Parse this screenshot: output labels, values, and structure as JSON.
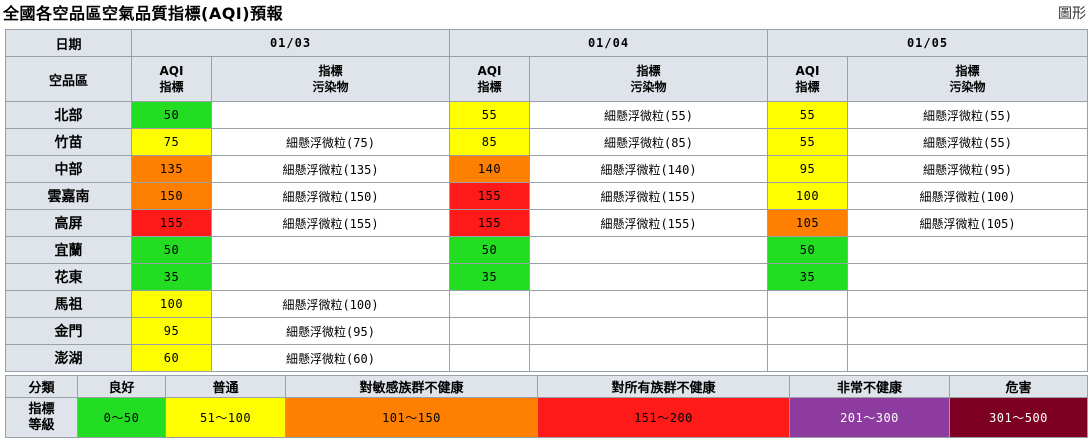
{
  "page": {
    "title": "全國各空品區空氣品質指標(AQI)預報",
    "graph_link": "圖形"
  },
  "table": {
    "header_date": "日期",
    "header_region": "空品區",
    "aqi_header_line1": "AQI",
    "aqi_header_line2": "指標",
    "pollutant_header_line1": "指標",
    "pollutant_header_line2": "污染物",
    "dates": [
      "01/03",
      "01/04",
      "01/05"
    ],
    "rows": [
      {
        "region": "北部",
        "d1": {
          "aqi": "50",
          "color": "#22dd22",
          "pollutant": ""
        },
        "d2": {
          "aqi": "55",
          "color": "#ffff00",
          "pollutant": "細懸浮微粒(55)"
        },
        "d3": {
          "aqi": "55",
          "color": "#ffff00",
          "pollutant": "細懸浮微粒(55)"
        }
      },
      {
        "region": "竹苗",
        "d1": {
          "aqi": "75",
          "color": "#ffff00",
          "pollutant": "細懸浮微粒(75)"
        },
        "d2": {
          "aqi": "85",
          "color": "#ffff00",
          "pollutant": "細懸浮微粒(85)"
        },
        "d3": {
          "aqi": "55",
          "color": "#ffff00",
          "pollutant": "細懸浮微粒(55)"
        }
      },
      {
        "region": "中部",
        "d1": {
          "aqi": "135",
          "color": "#ff8000",
          "pollutant": "細懸浮微粒(135)"
        },
        "d2": {
          "aqi": "140",
          "color": "#ff8000",
          "pollutant": "細懸浮微粒(140)"
        },
        "d3": {
          "aqi": "95",
          "color": "#ffff00",
          "pollutant": "細懸浮微粒(95)"
        }
      },
      {
        "region": "雲嘉南",
        "d1": {
          "aqi": "150",
          "color": "#ff8000",
          "pollutant": "細懸浮微粒(150)"
        },
        "d2": {
          "aqi": "155",
          "color": "#ff1a1a",
          "pollutant": "細懸浮微粒(155)"
        },
        "d3": {
          "aqi": "100",
          "color": "#ffff00",
          "pollutant": "細懸浮微粒(100)"
        }
      },
      {
        "region": "高屏",
        "d1": {
          "aqi": "155",
          "color": "#ff1a1a",
          "pollutant": "細懸浮微粒(155)"
        },
        "d2": {
          "aqi": "155",
          "color": "#ff1a1a",
          "pollutant": "細懸浮微粒(155)"
        },
        "d3": {
          "aqi": "105",
          "color": "#ff8000",
          "pollutant": "細懸浮微粒(105)"
        }
      },
      {
        "region": "宜蘭",
        "d1": {
          "aqi": "50",
          "color": "#22dd22",
          "pollutant": ""
        },
        "d2": {
          "aqi": "50",
          "color": "#22dd22",
          "pollutant": ""
        },
        "d3": {
          "aqi": "50",
          "color": "#22dd22",
          "pollutant": ""
        }
      },
      {
        "region": "花東",
        "d1": {
          "aqi": "35",
          "color": "#22dd22",
          "pollutant": ""
        },
        "d2": {
          "aqi": "35",
          "color": "#22dd22",
          "pollutant": ""
        },
        "d3": {
          "aqi": "35",
          "color": "#22dd22",
          "pollutant": ""
        }
      },
      {
        "region": "馬祖",
        "d1": {
          "aqi": "100",
          "color": "#ffff00",
          "pollutant": "細懸浮微粒(100)"
        },
        "d2": {
          "aqi": "",
          "color": "#ffffff",
          "pollutant": ""
        },
        "d3": {
          "aqi": "",
          "color": "#ffffff",
          "pollutant": ""
        }
      },
      {
        "region": "金門",
        "d1": {
          "aqi": "95",
          "color": "#ffff00",
          "pollutant": "細懸浮微粒(95)"
        },
        "d2": {
          "aqi": "",
          "color": "#ffffff",
          "pollutant": ""
        },
        "d3": {
          "aqi": "",
          "color": "#ffffff",
          "pollutant": ""
        }
      },
      {
        "region": "澎湖",
        "d1": {
          "aqi": "60",
          "color": "#ffff00",
          "pollutant": "細懸浮微粒(60)"
        },
        "d2": {
          "aqi": "",
          "color": "#ffffff",
          "pollutant": ""
        },
        "d3": {
          "aqi": "",
          "color": "#ffffff",
          "pollutant": ""
        }
      }
    ]
  },
  "legend": {
    "category_label": "分類",
    "index_label_line1": "指標",
    "index_label_line2": "等級",
    "levels": [
      {
        "name": "良好",
        "range": "0～50",
        "color": "#22dd22",
        "text_color": "#000000"
      },
      {
        "name": "普通",
        "range": "51～100",
        "color": "#ffff00",
        "text_color": "#000000"
      },
      {
        "name": "對敏感族群不健康",
        "range": "101～150",
        "color": "#ff8000",
        "text_color": "#000000"
      },
      {
        "name": "對所有族群不健康",
        "range": "151～200",
        "color": "#ff1a1a",
        "text_color": "#000000"
      },
      {
        "name": "非常不健康",
        "range": "201～300",
        "color": "#8e3b9f",
        "text_color": "#ffffff"
      },
      {
        "name": "危害",
        "range": "301～500",
        "color": "#7d0022",
        "text_color": "#ffffff"
      }
    ]
  }
}
